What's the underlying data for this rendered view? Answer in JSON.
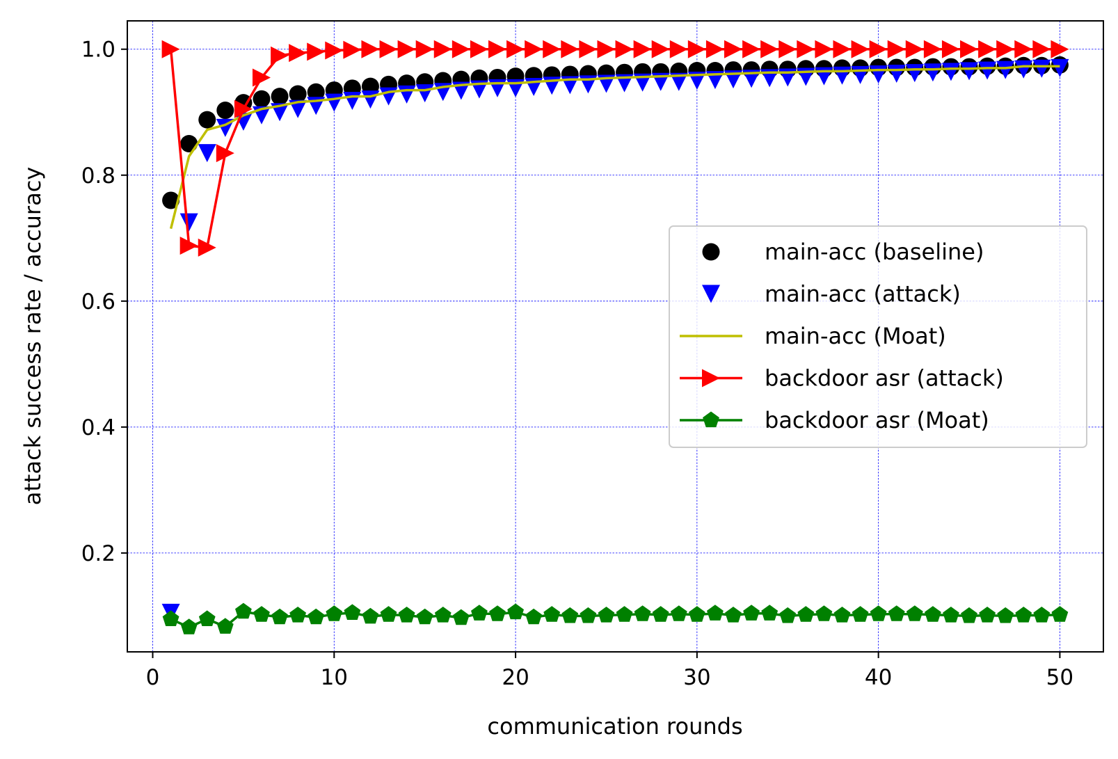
{
  "chart_data": {
    "type": "line",
    "title": "",
    "xlabel": "communication rounds",
    "ylabel": "attack success rate / accuracy",
    "xlim": [
      -1.4,
      52.4
    ],
    "ylim": [
      0.043,
      1.045
    ],
    "grid": true,
    "legend_position": "center-right",
    "x_ticks": [
      0,
      10,
      20,
      30,
      40,
      50
    ],
    "x_tick_labels": [
      "0",
      "10",
      "20",
      "30",
      "40",
      "50"
    ],
    "y_ticks": [
      0.2,
      0.4,
      0.6,
      0.8,
      1.0
    ],
    "y_tick_labels": [
      "0.2",
      "0.4",
      "0.6",
      "0.8",
      "1.0"
    ],
    "x": [
      1,
      2,
      3,
      4,
      5,
      6,
      7,
      8,
      9,
      10,
      11,
      12,
      13,
      14,
      15,
      16,
      17,
      18,
      19,
      20,
      21,
      22,
      23,
      24,
      25,
      26,
      27,
      28,
      29,
      30,
      31,
      32,
      33,
      34,
      35,
      36,
      37,
      38,
      39,
      40,
      41,
      42,
      43,
      44,
      45,
      46,
      47,
      48,
      49,
      50
    ],
    "series": [
      {
        "name": "main-acc (baseline)",
        "color": "#000000",
        "marker": "circle",
        "line": false,
        "values": [
          0.76,
          0.85,
          0.888,
          0.903,
          0.915,
          0.921,
          0.925,
          0.929,
          0.932,
          0.935,
          0.938,
          0.941,
          0.944,
          0.946,
          0.948,
          0.95,
          0.952,
          0.954,
          0.955,
          0.957,
          0.958,
          0.959,
          0.96,
          0.961,
          0.962,
          0.963,
          0.964,
          0.964,
          0.965,
          0.966,
          0.966,
          0.967,
          0.967,
          0.968,
          0.968,
          0.969,
          0.969,
          0.97,
          0.97,
          0.971,
          0.971,
          0.971,
          0.972,
          0.972,
          0.972,
          0.973,
          0.973,
          0.974,
          0.974,
          0.975
        ]
      },
      {
        "name": "main-acc (attack)",
        "color": "#0000ff",
        "marker": "triangle-down",
        "line": false,
        "values": [
          0.105,
          0.725,
          0.835,
          0.875,
          0.885,
          0.895,
          0.9,
          0.905,
          0.91,
          0.915,
          0.918,
          0.92,
          0.925,
          0.928,
          0.93,
          0.932,
          0.934,
          0.936,
          0.938,
          0.938,
          0.94,
          0.942,
          0.943,
          0.944,
          0.945,
          0.946,
          0.947,
          0.948,
          0.948,
          0.95,
          0.951,
          0.952,
          0.953,
          0.954,
          0.955,
          0.956,
          0.957,
          0.958,
          0.959,
          0.96,
          0.961,
          0.962,
          0.963,
          0.964,
          0.965,
          0.966,
          0.967,
          0.968,
          0.969,
          0.97
        ]
      },
      {
        "name": "main-acc (Moat)",
        "color": "#bfbf00",
        "marker": "none",
        "line": true,
        "values": [
          0.715,
          0.83,
          0.872,
          0.88,
          0.895,
          0.905,
          0.91,
          0.916,
          0.918,
          0.921,
          0.925,
          0.925,
          0.932,
          0.935,
          0.935,
          0.94,
          0.943,
          0.945,
          0.946,
          0.946,
          0.948,
          0.95,
          0.952,
          0.952,
          0.954,
          0.955,
          0.956,
          0.957,
          0.958,
          0.959,
          0.96,
          0.961,
          0.962,
          0.963,
          0.963,
          0.964,
          0.965,
          0.965,
          0.966,
          0.967,
          0.967,
          0.968,
          0.968,
          0.969,
          0.969,
          0.97,
          0.97,
          0.973,
          0.973,
          0.973
        ]
      },
      {
        "name": "backdoor asr (attack)",
        "color": "#ff0000",
        "marker": "triangle-right",
        "line": true,
        "values": [
          1.0,
          0.688,
          0.685,
          0.835,
          0.905,
          0.955,
          0.99,
          0.994,
          0.996,
          0.998,
          0.999,
          1.0,
          1.0,
          1.0,
          1.0,
          1.0,
          1.0,
          1.0,
          1.0,
          1.0,
          1.0,
          1.0,
          1.0,
          1.0,
          1.0,
          1.0,
          1.0,
          1.0,
          1.0,
          1.0,
          1.0,
          1.0,
          1.0,
          1.0,
          1.0,
          1.0,
          1.0,
          1.0,
          1.0,
          1.0,
          1.0,
          1.0,
          1.0,
          1.0,
          1.0,
          1.0,
          1.0,
          1.0,
          1.0,
          1.0
        ]
      },
      {
        "name": "backdoor asr (Moat)",
        "color": "#008000",
        "marker": "pentagon",
        "line": true,
        "values": [
          0.095,
          0.082,
          0.095,
          0.083,
          0.107,
          0.102,
          0.098,
          0.101,
          0.098,
          0.103,
          0.105,
          0.099,
          0.102,
          0.101,
          0.098,
          0.101,
          0.097,
          0.104,
          0.103,
          0.106,
          0.098,
          0.102,
          0.1,
          0.1,
          0.101,
          0.102,
          0.103,
          0.102,
          0.103,
          0.102,
          0.104,
          0.101,
          0.104,
          0.104,
          0.1,
          0.102,
          0.103,
          0.101,
          0.102,
          0.103,
          0.103,
          0.103,
          0.102,
          0.101,
          0.1,
          0.101,
          0.1,
          0.101,
          0.101,
          0.102
        ]
      }
    ]
  }
}
